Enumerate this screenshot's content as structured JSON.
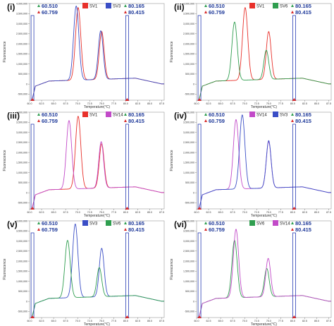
{
  "chart_data": [
    {
      "panel": "(i)",
      "type": "line",
      "xlabel": "Temperature(°C)",
      "ylabel": "Fluorescence",
      "yticks": [
        "4,000,000",
        "3,500,000",
        "3,000,000",
        "2,500,000",
        "2,000,000",
        "1,500,000",
        "1,000,000",
        "500,000",
        "0",
        "-500,000"
      ],
      "xticks": [
        "60.0",
        "62.5",
        "65.0",
        "67.5",
        "70.0",
        "72.5",
        "75.0",
        "77.5",
        "80.0",
        "82.5",
        "85.0",
        "87.5"
      ],
      "xlim": [
        60.0,
        88.0
      ],
      "ylim": [
        -800000,
        4000000
      ],
      "markers_left": [
        "60.510",
        "60.759"
      ],
      "markers_right": [
        "80.165",
        "80.415"
      ],
      "series": [
        {
          "name": "SV1",
          "color": "#e8302a",
          "peaks": [
            [
              70.1,
              3750000
            ],
            [
              75.0,
              2520000
            ]
          ]
        },
        {
          "name": "SV3",
          "color": "#3a4ec6",
          "peaks": [
            [
              69.7,
              3830000
            ],
            [
              74.8,
              2560000
            ]
          ]
        }
      ]
    },
    {
      "panel": "(ii)",
      "type": "line",
      "xlabel": "Temperature(°C)",
      "ylabel": "Fluorescence",
      "yticks": [
        "4,000,000",
        "3,500,000",
        "3,000,000",
        "2,500,000",
        "2,000,000",
        "1,500,000",
        "1,000,000",
        "500,000",
        "0",
        "-500,000"
      ],
      "xticks": [
        "60.0",
        "62.5",
        "65.0",
        "67.5",
        "70.0",
        "72.5",
        "75.0",
        "77.5",
        "80.0",
        "82.5",
        "85.0",
        "87.5"
      ],
      "xlim": [
        60.0,
        88.0
      ],
      "ylim": [
        -800000,
        4000000
      ],
      "markers_left": [
        "60.510",
        "60.759"
      ],
      "markers_right": [
        "80.165",
        "80.415"
      ],
      "series": [
        {
          "name": "SV1",
          "color": "#e8302a",
          "peaks": [
            [
              70.1,
              3750000
            ],
            [
              75.0,
              2520000
            ]
          ]
        },
        {
          "name": "SV6",
          "color": "#2f9e4f",
          "peaks": [
            [
              67.9,
              3050000
            ],
            [
              74.5,
              1600000
            ]
          ]
        }
      ]
    },
    {
      "panel": "(iii)",
      "type": "line",
      "xlabel": "Temperature(°C)",
      "ylabel": "Fluorescence",
      "yticks": [
        "4,000,000",
        "3,500,000",
        "3,000,000",
        "2,500,000",
        "2,000,000",
        "1,500,000",
        "1,000,000",
        "500,000",
        "0",
        "-500,000"
      ],
      "xticks": [
        "60.0",
        "62.5",
        "65.0",
        "67.5",
        "70.0",
        "72.5",
        "75.0",
        "77.5",
        "80.0",
        "82.5",
        "85.0",
        "87.5"
      ],
      "xlim": [
        60.0,
        88.0
      ],
      "ylim": [
        -800000,
        4000000
      ],
      "markers_left": [
        "60.510",
        "60.759"
      ],
      "markers_right": [
        "80.165",
        "80.415"
      ],
      "series": [
        {
          "name": "SV1",
          "color": "#e8302a",
          "peaks": [
            [
              70.1,
              3750000
            ],
            [
              75.0,
              2350000
            ]
          ]
        },
        {
          "name": "SV14",
          "color": "#c24ac8",
          "peaks": [
            [
              68.2,
              3550000
            ],
            [
              74.9,
              2450000
            ]
          ]
        }
      ]
    },
    {
      "panel": "(iv)",
      "type": "line",
      "xlabel": "Temperature(°C)",
      "ylabel": "Fluorescence",
      "yticks": [
        "4,000,000",
        "3,500,000",
        "3,000,000",
        "2,500,000",
        "2,000,000",
        "1,500,000",
        "1,000,000",
        "500,000",
        "0",
        "-500,000"
      ],
      "xticks": [
        "60.0",
        "62.5",
        "65.0",
        "67.5",
        "70.0",
        "72.5",
        "75.0",
        "77.5",
        "80.0",
        "82.5",
        "85.0",
        "87.5"
      ],
      "xlim": [
        60.0,
        88.0
      ],
      "ylim": [
        -800000,
        4000000
      ],
      "markers_left": [
        "60.510",
        "60.759"
      ],
      "markers_right": [
        "80.165",
        "80.415"
      ],
      "series": [
        {
          "name": "SV14",
          "color": "#c24ac8",
          "peaks": [
            [
              68.2,
              3600000
            ],
            [
              75.0,
              2450000
            ]
          ]
        },
        {
          "name": "SV3",
          "color": "#3a4ec6",
          "peaks": [
            [
              69.5,
              3820000
            ],
            [
              75.0,
              2500000
            ]
          ]
        }
      ]
    },
    {
      "panel": "(v)",
      "type": "line",
      "xlabel": "Temperature(°C)",
      "ylabel": "Fluorescence",
      "yticks": [
        "4,000,000",
        "3,500,000",
        "3,000,000",
        "2,500,000",
        "2,000,000",
        "1,500,000",
        "1,000,000",
        "500,000",
        "0",
        "-500,000"
      ],
      "xticks": [
        "60.0",
        "62.5",
        "65.0",
        "67.5",
        "70.0",
        "72.5",
        "75.0",
        "77.5",
        "80.0",
        "82.5",
        "85.0",
        "87.5"
      ],
      "xlim": [
        60.0,
        88.0
      ],
      "ylim": [
        -800000,
        4000000
      ],
      "markers_left": [
        "60.510",
        "60.759"
      ],
      "markers_right": [
        "80.165",
        "80.415"
      ],
      "series": [
        {
          "name": "SV3",
          "color": "#3a4ec6",
          "peaks": [
            [
              69.5,
              3800000
            ],
            [
              75.0,
              2550000
            ]
          ]
        },
        {
          "name": "SV6",
          "color": "#2f9e4f",
          "peaks": [
            [
              67.9,
              3000000
            ],
            [
              74.5,
              1600000
            ]
          ]
        }
      ]
    },
    {
      "panel": "(vi)",
      "type": "line",
      "xlabel": "Temperature(°C)",
      "ylabel": "Fluorescence",
      "yticks": [
        "4,000,000",
        "3,500,000",
        "3,000,000",
        "2,500,000",
        "2,000,000",
        "1,500,000",
        "1,000,000",
        "500,000",
        "0",
        "-500,000"
      ],
      "xticks": [
        "60.0",
        "62.5",
        "65.0",
        "67.5",
        "70.0",
        "72.5",
        "75.0",
        "77.5",
        "80.0",
        "82.5",
        "85.0",
        "87.5"
      ],
      "xlim": [
        60.0,
        88.0
      ],
      "ylim": [
        -800000,
        4000000
      ],
      "markers_left": [
        "60.510",
        "60.759"
      ],
      "markers_right": [
        "80.165",
        "80.415"
      ],
      "series": [
        {
          "name": "SV6",
          "color": "#2f9e4f",
          "peaks": [
            [
              67.9,
              3000000
            ],
            [
              74.6,
              1550000
            ]
          ]
        },
        {
          "name": "SV14",
          "color": "#c24ac8",
          "peaks": [
            [
              68.2,
              3550000
            ],
            [
              74.9,
              2050000
            ]
          ]
        }
      ]
    }
  ],
  "colors": {
    "marker_line": "#2b3fb5",
    "marker_text": "#1f3a9a",
    "axis": "#555555"
  }
}
